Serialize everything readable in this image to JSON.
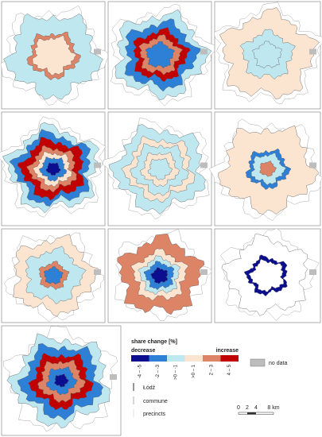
{
  "legend": {
    "title": "share change [%]",
    "decrease": "decrease",
    "increase": "increase",
    "classes": [
      {
        "label": "-4 – -5",
        "color": "#0b0f8f"
      },
      {
        "label": "-2 – -3",
        "color": "#2e7fd6"
      },
      {
        "label": ">0 – -1",
        "color": "#bfe7ef"
      },
      {
        "label": ">0 – 1",
        "color": "#fbe4d0"
      },
      {
        "label": "2 – 3",
        "color": "#dd8366"
      },
      {
        "label": "4 – 5",
        "color": "#c10000"
      }
    ],
    "no_data": "no data"
  },
  "layers": {
    "city": "Łódź",
    "commune": "commune",
    "precincts": "precincts"
  },
  "scale": {
    "ticks": [
      "0",
      "2",
      "4"
    ],
    "end": "8 km"
  }
}
